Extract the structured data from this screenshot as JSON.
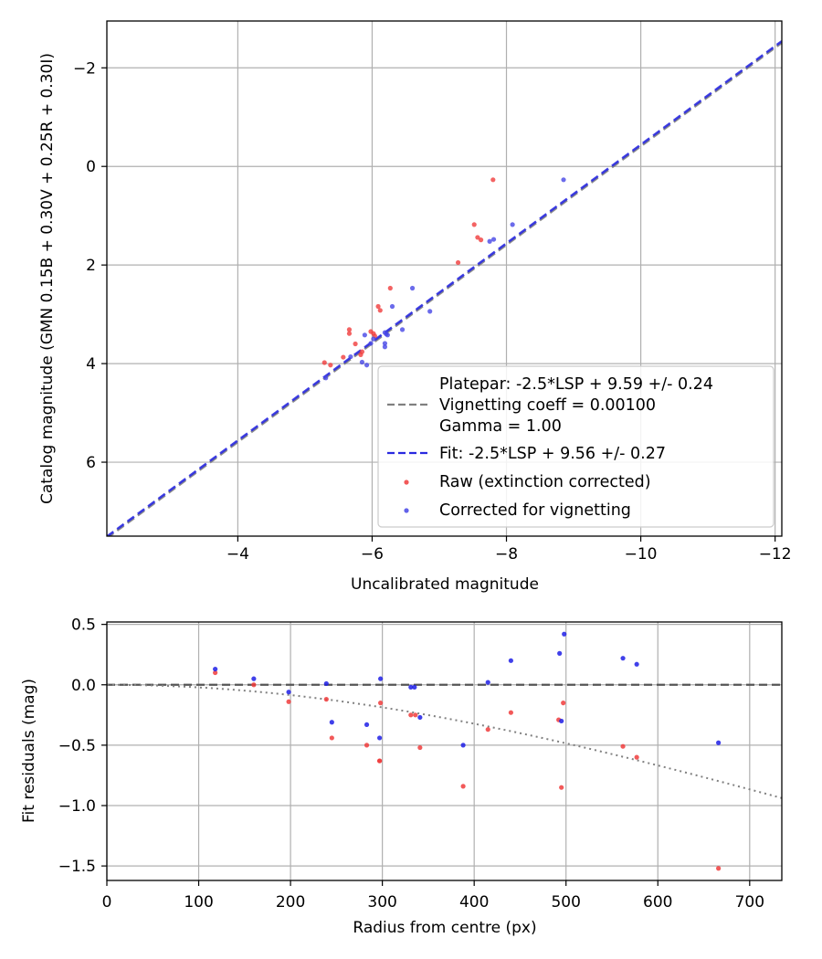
{
  "chart_data": [
    {
      "type": "scatter",
      "xlabel": "Uncalibrated magnitude",
      "ylabel": "Catalog magnitude (GMN 0.15B + 0.30V + 0.25R + 0.30I)",
      "xlim": [
        -2.05,
        -12.1
      ],
      "ylim": [
        7.5,
        -2.95
      ],
      "x_ticks": [
        -4,
        -6,
        -8,
        -10,
        -12
      ],
      "x_tick_labels": [
        "−4",
        "−6",
        "−8",
        "−10",
        "−12"
      ],
      "y_ticks": [
        -2,
        0,
        2,
        4,
        6
      ],
      "y_tick_labels": [
        "−2",
        "0",
        "2",
        "4",
        "6"
      ],
      "grid": true,
      "legend_location": "lower-right",
      "legend": [
        {
          "kind": "dashed-line",
          "color": "#808080",
          "lines": [
            "Platepar: -2.5*LSP + 9.59 +/- 0.24",
            "Vignetting coeff = 0.00100",
            "Gamma = 1.00"
          ]
        },
        {
          "kind": "dashed-line",
          "color": "#2a2ae0",
          "lines": [
            "Fit: -2.5*LSP + 9.56 +/- 0.27"
          ]
        },
        {
          "kind": "point",
          "color": "#f03c3c",
          "lines": [
            "Raw (extinction corrected)"
          ]
        },
        {
          "kind": "point",
          "color": "#4646e6",
          "lines": [
            "Corrected for vignetting"
          ]
        }
      ],
      "lines": [
        {
          "name": "Platepar",
          "slope": 1.0,
          "intercept": 9.59,
          "color": "#808080"
        },
        {
          "name": "Fit",
          "slope": 1.0,
          "intercept": 9.56,
          "color": "#2a2ae0"
        }
      ],
      "series": [
        {
          "name": "Raw (extinction corrected)",
          "color": "#f03c3c",
          "x": [
            -7.8,
            -7.52,
            -7.57,
            -7.62,
            -7.28,
            -6.27,
            -6.09,
            -6.12,
            -5.66,
            -5.66,
            -5.98,
            -6.02,
            -6.04,
            -5.75,
            -5.83,
            -5.57,
            -5.29,
            -5.38,
            -5.85
          ],
          "y": [
            0.27,
            1.18,
            1.44,
            1.49,
            1.95,
            2.47,
            2.84,
            2.92,
            3.31,
            3.39,
            3.35,
            3.39,
            3.44,
            3.6,
            3.82,
            3.87,
            3.98,
            4.03,
            3.76
          ]
        },
        {
          "name": "Corrected for vignetting",
          "color": "#4646e6",
          "x": [
            -8.85,
            -8.09,
            -7.81,
            -7.75,
            -6.6,
            -6.3,
            -6.86,
            -6.45,
            -6.19,
            -6.21,
            -6.23,
            -6.19,
            -6.02,
            -5.98,
            -6.19,
            -5.89,
            -5.85,
            -5.68,
            -5.92,
            -5.31
          ],
          "y": [
            0.27,
            1.18,
            1.48,
            1.52,
            2.47,
            2.84,
            2.94,
            3.31,
            3.37,
            3.4,
            3.42,
            3.59,
            3.5,
            3.59,
            3.66,
            3.42,
            3.97,
            3.86,
            4.03,
            4.29
          ]
        }
      ]
    },
    {
      "type": "scatter",
      "xlabel": "Radius from centre (px)",
      "ylabel": "Fit residuals (mag)",
      "xlim": [
        0,
        735
      ],
      "ylim": [
        -1.62,
        0.52
      ],
      "x_ticks": [
        0,
        100,
        200,
        300,
        400,
        500,
        600,
        700
      ],
      "x_tick_labels": [
        "0",
        "100",
        "200",
        "300",
        "400",
        "500",
        "600",
        "700"
      ],
      "y_ticks": [
        0.5,
        0.0,
        -0.5,
        -1.0,
        -1.5
      ],
      "y_tick_labels": [
        "0.5",
        "0.0",
        "−0.5",
        "−1.0",
        "−1.5"
      ],
      "grid": true,
      "reference_line": {
        "y": 0.0,
        "style": "dashed",
        "color": "#555555"
      },
      "vignetting_curve": {
        "coeff": 0.001,
        "style": "dotted",
        "color": "#808080"
      },
      "series": [
        {
          "name": "Raw (extinction corrected)",
          "color": "#f03c3c",
          "x": [
            118,
            160,
            198,
            239,
            245,
            283,
            297,
            297,
            298,
            331,
            336,
            341,
            388,
            415,
            440,
            492,
            495,
            497,
            562,
            577,
            666
          ],
          "y": [
            0.1,
            0.0,
            -0.14,
            -0.12,
            -0.44,
            -0.5,
            -0.63,
            -0.63,
            -0.15,
            -0.25,
            -0.25,
            -0.52,
            -0.84,
            -0.37,
            -0.23,
            -0.29,
            -0.85,
            -0.15,
            -0.51,
            -0.6,
            -1.52
          ]
        },
        {
          "name": "Corrected for vignetting",
          "color": "#1e1ee6",
          "x": [
            118,
            160,
            198,
            239,
            245,
            283,
            297,
            298,
            331,
            335,
            341,
            388,
            415,
            440,
            493,
            495,
            498,
            562,
            577,
            666
          ],
          "y": [
            0.13,
            0.05,
            -0.06,
            0.01,
            -0.31,
            -0.33,
            -0.44,
            0.05,
            -0.02,
            -0.02,
            -0.27,
            -0.5,
            0.02,
            0.2,
            0.26,
            -0.3,
            0.42,
            0.22,
            0.17,
            -0.48
          ]
        }
      ]
    }
  ]
}
